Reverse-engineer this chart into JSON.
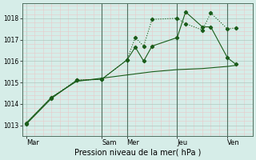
{
  "xlabel": "Pression niveau de la mer( hPa )",
  "ylim": [
    1012.5,
    1018.7
  ],
  "yticks": [
    1013,
    1014,
    1015,
    1016,
    1017,
    1018
  ],
  "xtick_labels": [
    "Mar",
    "Sam",
    "Mer",
    "Jeu",
    "Ven"
  ],
  "xtick_positions": [
    0,
    9,
    12,
    18,
    24
  ],
  "background_color": "#d6ede8",
  "grid_color": "#c0ddd5",
  "grid_color_major": "#aac8be",
  "line_color": "#1a5c1a",
  "xlim": [
    -0.5,
    27
  ],
  "vline_positions": [
    9,
    12,
    18,
    24
  ],
  "series1_x": [
    0,
    3,
    6,
    9,
    12,
    13,
    14,
    15,
    18,
    19,
    21,
    22,
    24,
    25
  ],
  "series1_y": [
    1013.1,
    1014.3,
    1015.1,
    1015.15,
    1016.05,
    1017.1,
    1016.7,
    1017.95,
    1018.0,
    1017.75,
    1017.45,
    1018.25,
    1017.5,
    1017.55
  ],
  "series2_x": [
    0,
    3,
    6,
    9,
    12,
    13,
    14,
    15,
    18,
    19,
    21,
    22,
    24,
    25
  ],
  "series2_y": [
    1013.05,
    1014.25,
    1015.1,
    1015.15,
    1016.05,
    1016.65,
    1016.0,
    1016.7,
    1017.1,
    1018.3,
    1017.6,
    1017.6,
    1016.15,
    1015.85
  ],
  "series3_x": [
    0,
    3,
    6,
    9,
    12,
    15,
    18,
    21,
    24,
    25
  ],
  "series3_y": [
    1013.1,
    1014.3,
    1015.05,
    1015.2,
    1015.35,
    1015.5,
    1015.6,
    1015.65,
    1015.75,
    1015.8
  ],
  "fig_width": 3.2,
  "fig_height": 2.0,
  "dpi": 100
}
